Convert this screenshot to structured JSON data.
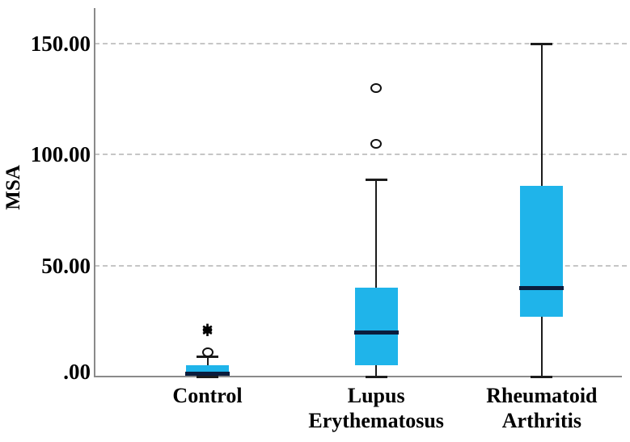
{
  "figure": {
    "background": "#ffffff"
  },
  "chart_data": {
    "type": "boxplot",
    "title": "",
    "xlabel": "",
    "ylabel": "MSA",
    "ylim": [
      0,
      166
    ],
    "grid": "horizontal-dashed",
    "legend": "none",
    "yticks": [
      {
        "value": 0,
        "label": ".00"
      },
      {
        "value": 50,
        "label": "50.00"
      },
      {
        "value": 100,
        "label": "100.00"
      },
      {
        "value": 150,
        "label": "150.00"
      }
    ],
    "categories": [
      "Control",
      "Lupus\nErythematosus",
      "Rheumatoid\nArthritis"
    ],
    "series": [
      {
        "name": "Control",
        "min": 0,
        "q1": 0.5,
        "median": 1.5,
        "q3": 5,
        "max": 9,
        "outliers": [
          11
        ],
        "extremes": [
          20,
          21
        ]
      },
      {
        "name": "Lupus Erythematosus",
        "min": 0,
        "q1": 5,
        "median": 20,
        "q3": 40,
        "max": 89,
        "outliers": [
          105,
          130
        ],
        "extremes": []
      },
      {
        "name": "Rheumatoid Arthritis",
        "min": 0,
        "q1": 27,
        "median": 40,
        "q3": 86,
        "max": 150,
        "outliers": [],
        "extremes": []
      }
    ],
    "colors": {
      "box_fill": "#1FB4EA",
      "median": "#0A1C3D",
      "whisker": "#1c1c1c",
      "grid": "#c6c6c6",
      "axis": "#8a8a8a",
      "outlier_stroke": "#111111",
      "text": "#000000",
      "background": "#ffffff"
    },
    "marker_glyphs": {
      "outlier": "circle",
      "extreme": "asterisk"
    }
  }
}
